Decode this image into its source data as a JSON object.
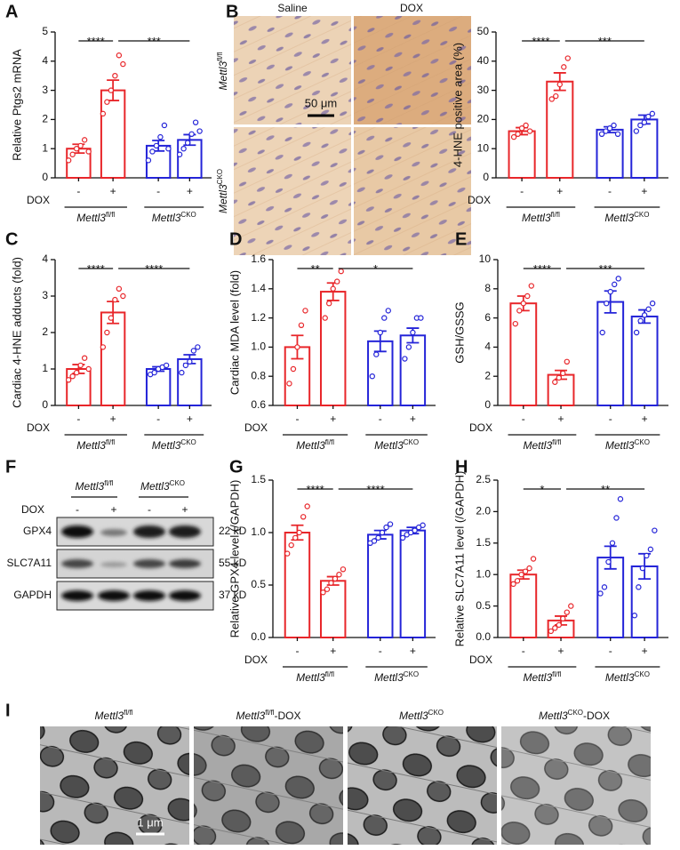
{
  "chart_data": [
    {
      "type": "bar",
      "panel": "A",
      "ylabel": "Relative Ptgs2 mRNA",
      "ylim": [
        0,
        5
      ],
      "yticks": [
        0,
        1,
        2,
        3,
        4,
        5
      ],
      "categories": [
        "-",
        "+",
        "-",
        "+"
      ],
      "x_label": "DOX",
      "groups": [
        {
          "name": "Mettl3",
          "sup": "fl/fl"
        },
        {
          "name": "Mettl3",
          "sup": "CKO"
        }
      ],
      "colors": [
        "#e8262a",
        "#e8262a",
        "#2424d8",
        "#2424d8"
      ],
      "values": [
        1.0,
        3.0,
        1.1,
        1.3
      ],
      "errors": [
        0.15,
        0.35,
        0.18,
        0.18
      ],
      "points": [
        [
          0.6,
          0.8,
          1.0,
          1.1,
          1.3,
          0.9
        ],
        [
          2.2,
          2.6,
          3.0,
          3.5,
          4.2,
          3.9
        ],
        [
          0.6,
          0.9,
          1.1,
          1.4,
          1.8,
          1.0
        ],
        [
          0.8,
          1.0,
          1.2,
          1.5,
          1.9,
          1.6
        ]
      ],
      "annotations": [
        "****",
        "***"
      ]
    },
    {
      "type": "bar",
      "panel": "B",
      "ylabel": "4-HNE positive area (%)",
      "ylim": [
        0,
        50
      ],
      "yticks": [
        0,
        10,
        20,
        30,
        40,
        50
      ],
      "categories": [
        "-",
        "+",
        "-",
        "+"
      ],
      "x_label": "DOX",
      "groups": [
        {
          "name": "Mettl3",
          "sup": "fl/fl"
        },
        {
          "name": "Mettl3",
          "sup": "CKO"
        }
      ],
      "colors": [
        "#e8262a",
        "#e8262a",
        "#2424d8",
        "#2424d8"
      ],
      "values": [
        16,
        33,
        16.5,
        20
      ],
      "errors": [
        1.2,
        3,
        1,
        1.5
      ],
      "points": [
        [
          14,
          15,
          17,
          18,
          16
        ],
        [
          27,
          28,
          32,
          38,
          41
        ],
        [
          15,
          16,
          17,
          18,
          15
        ],
        [
          16,
          18,
          19,
          21,
          22
        ]
      ],
      "annotations": [
        "****",
        "***"
      ]
    },
    {
      "type": "bar",
      "panel": "C",
      "ylabel": "Cardiac 4-HNE adducts (fold)",
      "ylim": [
        0,
        4
      ],
      "yticks": [
        0,
        1,
        2,
        3,
        4
      ],
      "categories": [
        "-",
        "+",
        "-",
        "+"
      ],
      "x_label": "DOX",
      "groups": [
        {
          "name": "Mettl3",
          "sup": "fl/fl"
        },
        {
          "name": "Mettl3",
          "sup": "CKO"
        }
      ],
      "colors": [
        "#e8262a",
        "#e8262a",
        "#2424d8",
        "#2424d8"
      ],
      "values": [
        1.0,
        2.55,
        1.0,
        1.27
      ],
      "errors": [
        0.12,
        0.3,
        0.06,
        0.12
      ],
      "points": [
        [
          0.7,
          0.8,
          0.9,
          1.1,
          1.3,
          1.0
        ],
        [
          1.6,
          2.0,
          2.4,
          2.9,
          3.2,
          3.0
        ],
        [
          0.85,
          0.9,
          1.0,
          1.05,
          1.1
        ],
        [
          0.9,
          1.1,
          1.2,
          1.5,
          1.6
        ]
      ],
      "annotations": [
        "****",
        "****"
      ]
    },
    {
      "type": "bar",
      "panel": "D",
      "ylabel": "Cardiac MDA level (fold)",
      "ylim": [
        0.6,
        1.6
      ],
      "yticks": [
        0.6,
        0.8,
        {
          "value": 1,
          "label": "1.0"
        },
        1.2,
        1.4,
        1.6
      ],
      "categories": [
        "-",
        "+",
        "-",
        "+"
      ],
      "x_label": "DOX",
      "groups": [
        {
          "name": "Mettl3",
          "sup": "fl/fl"
        },
        {
          "name": "Mettl3",
          "sup": "CKO"
        }
      ],
      "colors": [
        "#e8262a",
        "#e8262a",
        "#2424d8",
        "#2424d8"
      ],
      "values": [
        1.0,
        1.38,
        1.04,
        1.08
      ],
      "errors": [
        0.08,
        0.06,
        0.07,
        0.05
      ],
      "points": [
        [
          0.75,
          0.85,
          1.0,
          1.15,
          1.25
        ],
        [
          1.2,
          1.3,
          1.4,
          1.45,
          1.52
        ],
        [
          0.8,
          0.95,
          1.1,
          1.2,
          1.25
        ],
        [
          0.92,
          1.0,
          1.1,
          1.2,
          1.2
        ]
      ],
      "annotations": [
        "**",
        "*"
      ]
    },
    {
      "type": "bar",
      "panel": "E",
      "ylabel": "GSH/GSSG",
      "ylim": [
        0,
        10
      ],
      "yticks": [
        0,
        2,
        4,
        6,
        8,
        10
      ],
      "categories": [
        "-",
        "+",
        "-",
        "+"
      ],
      "x_label": "DOX",
      "groups": [
        {
          "name": "Mettl3",
          "sup": "fl/fl"
        },
        {
          "name": "Mettl3",
          "sup": "CKO"
        }
      ],
      "colors": [
        "#e8262a",
        "#e8262a",
        "#2424d8",
        "#2424d8"
      ],
      "values": [
        7.0,
        2.1,
        7.1,
        6.1
      ],
      "errors": [
        0.5,
        0.3,
        0.75,
        0.45
      ],
      "points": [
        [
          5.6,
          6.5,
          7.0,
          7.5,
          8.2
        ],
        [
          1.6,
          1.9,
          2.2,
          3.0
        ],
        [
          5.0,
          7.0,
          7.8,
          8.3,
          8.7
        ],
        [
          5.0,
          5.8,
          6.2,
          6.6,
          7.0
        ]
      ],
      "annotations": [
        "****",
        "***"
      ]
    },
    {
      "type": "bar",
      "panel": "G",
      "ylabel": "Relative GPX4 level (/GAPDH)",
      "ylim": [
        0,
        1.5
      ],
      "yticks": [
        {
          "value": 0,
          "label": "0.0"
        },
        0.5,
        {
          "value": 1,
          "label": "1.0"
        },
        1.5
      ],
      "categories": [
        "-",
        "+",
        "-",
        "+"
      ],
      "x_label": "DOX",
      "groups": [
        {
          "name": "Mettl3",
          "sup": "fl/fl"
        },
        {
          "name": "Mettl3",
          "sup": "CKO"
        }
      ],
      "colors": [
        "#e8262a",
        "#e8262a",
        "#2424d8",
        "#2424d8"
      ],
      "values": [
        1.0,
        0.54,
        0.98,
        1.02
      ],
      "errors": [
        0.07,
        0.04,
        0.04,
        0.03
      ],
      "points": [
        [
          0.8,
          0.88,
          0.95,
          1.0,
          1.15,
          1.25
        ],
        [
          0.43,
          0.46,
          0.52,
          0.56,
          0.6,
          0.65
        ],
        [
          0.9,
          0.92,
          0.95,
          1.0,
          1.05,
          1.08
        ],
        [
          0.95,
          0.98,
          1.0,
          1.02,
          1.05,
          1.07
        ]
      ],
      "annotations": [
        "****",
        "****"
      ]
    },
    {
      "type": "bar",
      "panel": "H",
      "ylabel": "Relative SLC7A11 level (/GAPDH)",
      "ylim": [
        0,
        2.5
      ],
      "yticks": [
        {
          "value": 0,
          "label": "0.0"
        },
        0.5,
        {
          "value": 1,
          "label": "1.0"
        },
        1.5,
        {
          "value": 2,
          "label": "2.0"
        },
        2.5
      ],
      "categories": [
        "-",
        "+",
        "-",
        "+"
      ],
      "x_label": "DOX",
      "groups": [
        {
          "name": "Mettl3",
          "sup": "fl/fl"
        },
        {
          "name": "Mettl3",
          "sup": "CKO"
        }
      ],
      "colors": [
        "#e8262a",
        "#e8262a",
        "#2424d8",
        "#2424d8"
      ],
      "values": [
        1.0,
        0.27,
        1.27,
        1.13
      ],
      "errors": [
        0.07,
        0.07,
        0.18,
        0.2
      ],
      "points": [
        [
          0.85,
          0.9,
          1.0,
          1.05,
          1.1,
          1.25
        ],
        [
          0.1,
          0.15,
          0.2,
          0.3,
          0.4,
          0.5
        ],
        [
          0.7,
          0.8,
          1.2,
          1.5,
          1.9,
          2.2
        ],
        [
          0.35,
          0.8,
          1.1,
          1.3,
          1.4,
          1.7
        ]
      ],
      "annotations": [
        "*",
        "**"
      ]
    }
  ],
  "panel_b": {
    "columns": [
      "Saline",
      "DOX"
    ],
    "rows": [
      {
        "name": "Mettl3",
        "sup": "fl/fl"
      },
      {
        "name": "Mettl3",
        "sup": "CKO"
      }
    ],
    "scale_bar": "50 μm"
  },
  "panel_f": {
    "panel": "F",
    "groups": [
      {
        "name": "Mettl3",
        "sup": "fl/fl"
      },
      {
        "name": "Mettl3",
        "sup": "CKO"
      }
    ],
    "treatment": "DOX",
    "lanes": [
      "-",
      "+",
      "-",
      "+"
    ],
    "blots": [
      {
        "protein": "GPX4",
        "size": "22 kD"
      },
      {
        "protein": "SLC7A11",
        "size": "55 kD"
      },
      {
        "protein": "GAPDH",
        "size": "37 kD"
      }
    ]
  },
  "panel_i": {
    "panel": "I",
    "images": [
      {
        "name": "Mettl3",
        "sup": "fl/fl"
      },
      {
        "name": "Mettl3",
        "sup": "fl/fl",
        "suffix": "-DOX"
      },
      {
        "name": "Mettl3",
        "sup": "CKO"
      },
      {
        "name": "Mettl3",
        "sup": "CKO",
        "suffix": "-DOX"
      }
    ],
    "scale_bar": "1 μm"
  }
}
